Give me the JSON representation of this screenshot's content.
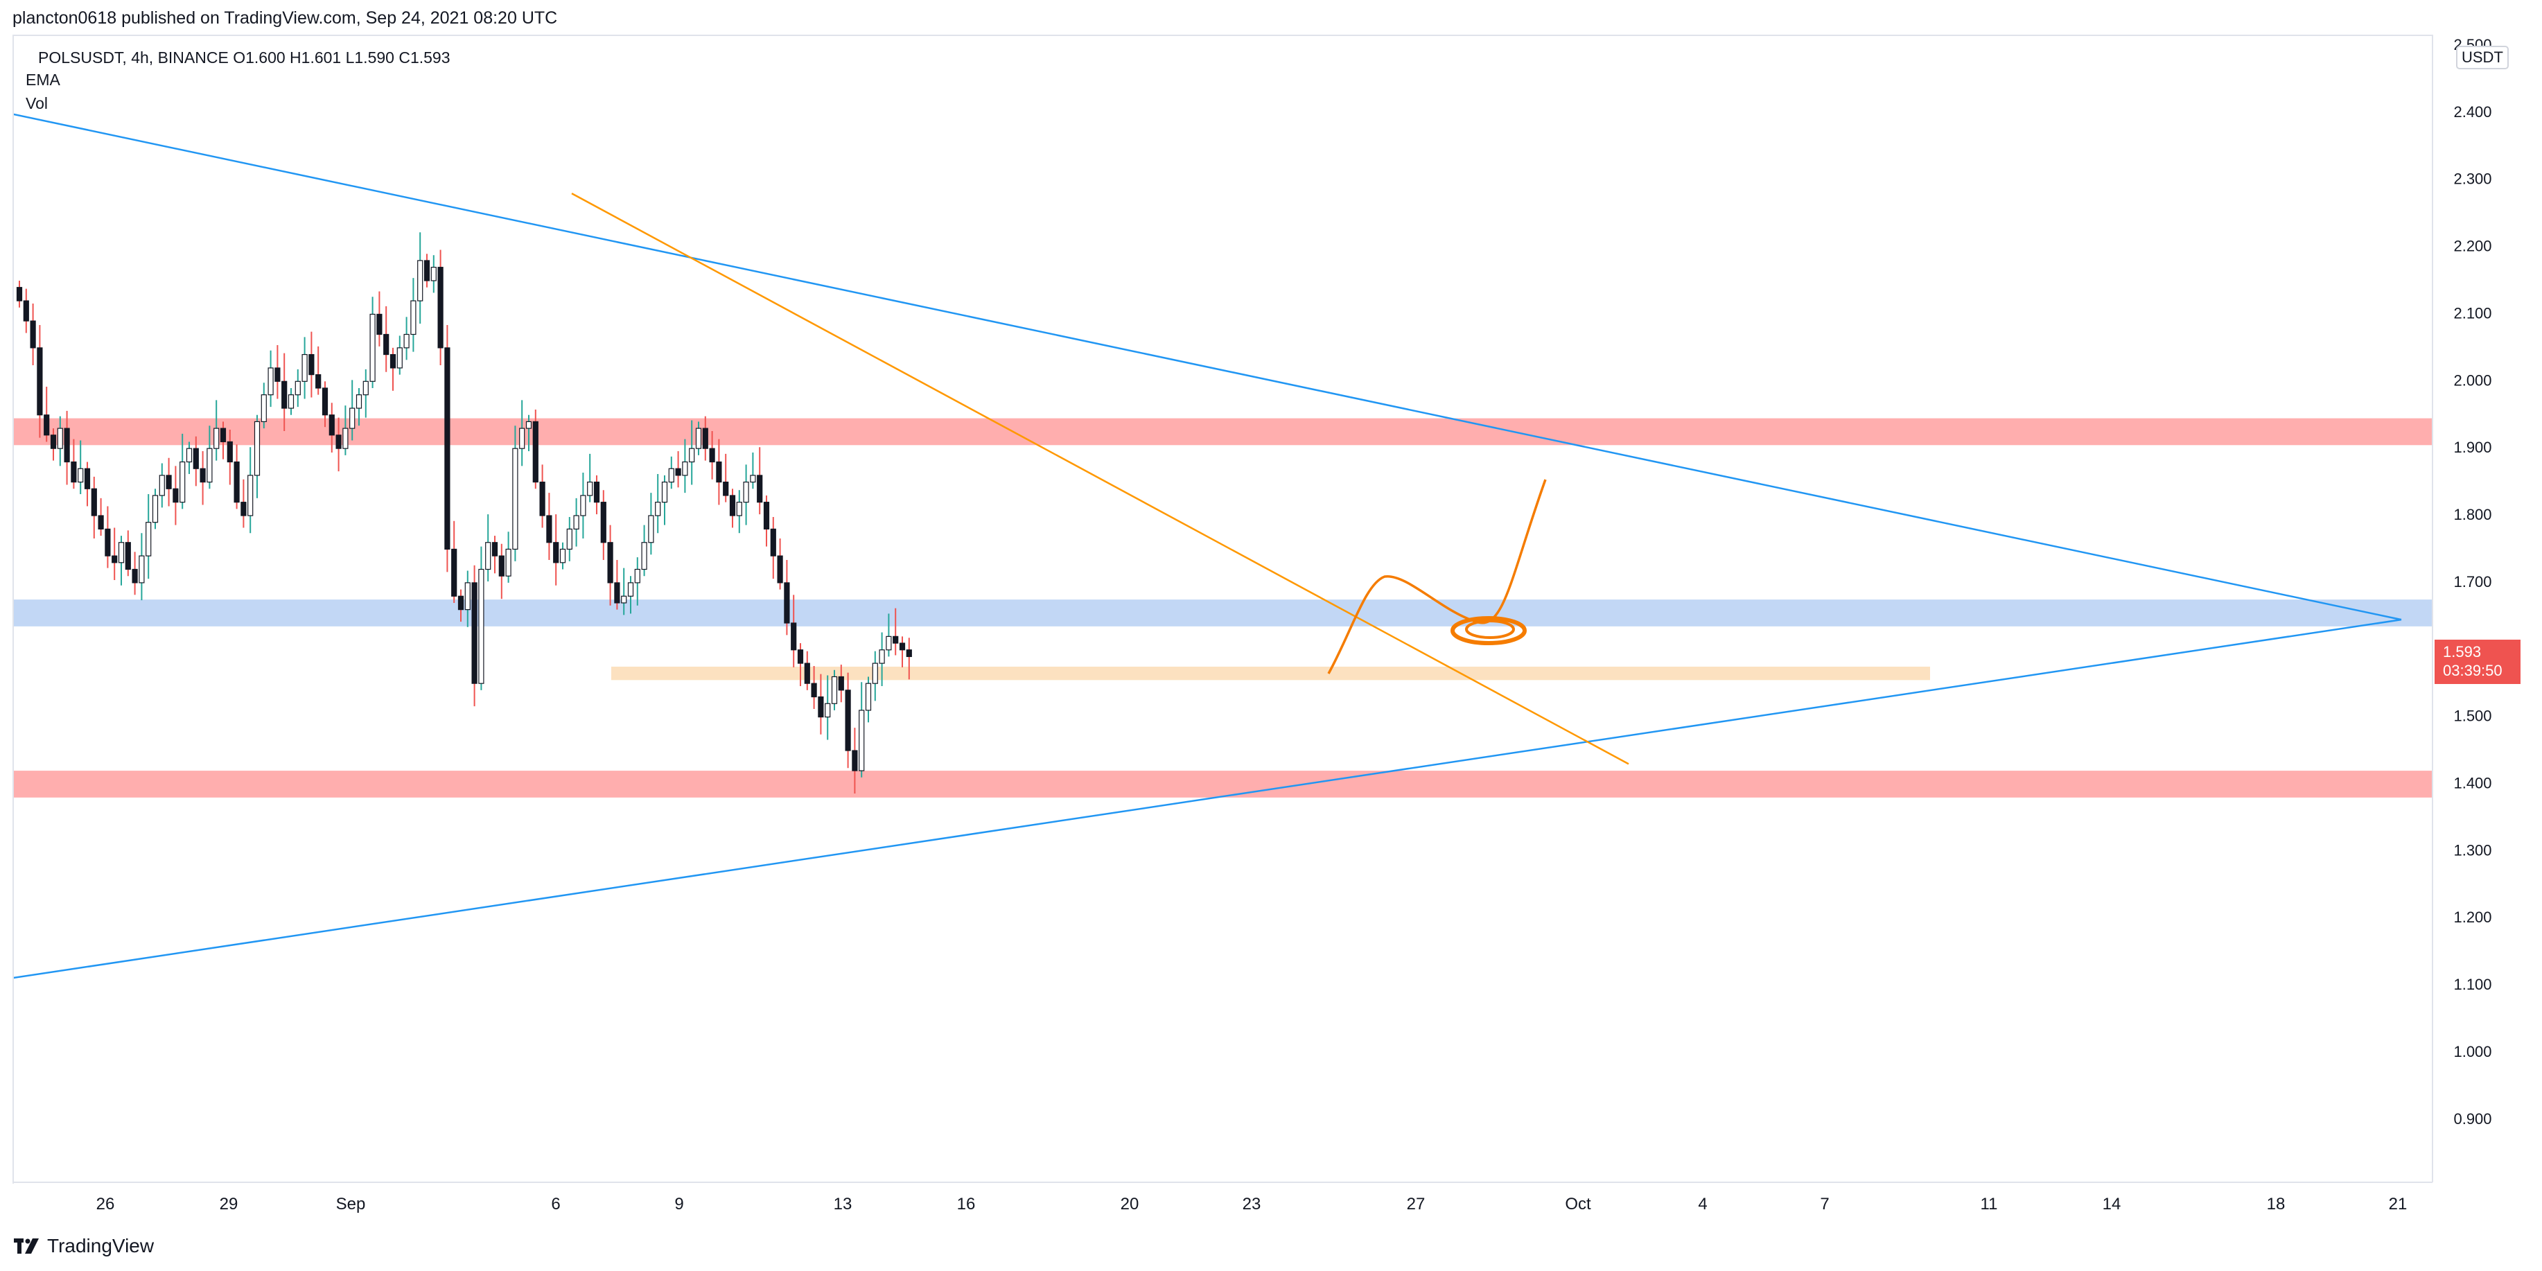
{
  "header": {
    "published_line": "plancton0618 published on TradingView.com, Sep 24, 2021 08:20 UTC"
  },
  "legend": {
    "symbol_line": "POLSUSDT, 4h, BINANCE  O1.600  H1.601  L1.590  C1.593",
    "indicator_1": "EMA",
    "indicator_2": "Vol"
  },
  "price_axis": {
    "currency_badge": "USDT",
    "labels": [
      "2.500",
      "2.400",
      "2.300",
      "2.200",
      "2.100",
      "2.000",
      "1.900",
      "1.800",
      "1.700",
      "1.500",
      "1.400",
      "1.300",
      "1.200",
      "1.100",
      "1.000",
      "0.900"
    ],
    "current_price": "1.593",
    "countdown": "03:39:50"
  },
  "time_axis": {
    "labels": [
      "26",
      "29",
      "Sep",
      "6",
      "9",
      "13",
      "16",
      "20",
      "23",
      "27",
      "Oct",
      "4",
      "7",
      "11",
      "14",
      "18",
      "21"
    ]
  },
  "footer": {
    "brand": "TradingView"
  },
  "colors": {
    "up": "#26a69a",
    "down": "#ef5350",
    "candle_body": "#131722",
    "trendline_blue": "#2196f3",
    "trendline_orange": "#ff9800",
    "zone_red": "#ff9a9a",
    "zone_blue": "#b3cdf3",
    "zone_orange": "#fbd9b0",
    "drawing": "#f57c00"
  },
  "chart_data": {
    "type": "candlestick",
    "symbol": "POLSUSDT",
    "interval": "4h",
    "exchange": "BINANCE",
    "ohlc_last": {
      "open": 1.6,
      "high": 1.601,
      "low": 1.59,
      "close": 1.593
    },
    "ylim": [
      0.82,
      2.5
    ],
    "closes": [
      2.12,
      2.09,
      2.05,
      1.95,
      1.92,
      1.9,
      1.93,
      1.88,
      1.85,
      1.87,
      1.84,
      1.8,
      1.78,
      1.74,
      1.73,
      1.76,
      1.72,
      1.7,
      1.74,
      1.79,
      1.83,
      1.86,
      1.84,
      1.82,
      1.88,
      1.9,
      1.87,
      1.85,
      1.9,
      1.93,
      1.91,
      1.88,
      1.82,
      1.8,
      1.86,
      1.94,
      1.98,
      2.02,
      2.0,
      1.96,
      1.98,
      2.0,
      2.04,
      2.01,
      1.99,
      1.95,
      1.92,
      1.9,
      1.93,
      1.96,
      1.98,
      2.0,
      2.1,
      2.07,
      2.04,
      2.02,
      2.05,
      2.07,
      2.12,
      2.18,
      2.15,
      2.17,
      2.05,
      1.75,
      1.68,
      1.66,
      1.7,
      1.55,
      1.72,
      1.76,
      1.74,
      1.71,
      1.75,
      1.9,
      1.93,
      1.94,
      1.85,
      1.8,
      1.76,
      1.73,
      1.75,
      1.78,
      1.8,
      1.83,
      1.85,
      1.82,
      1.76,
      1.7,
      1.67,
      1.68,
      1.7,
      1.72,
      1.76,
      1.8,
      1.82,
      1.85,
      1.87,
      1.86,
      1.88,
      1.9,
      1.93,
      1.9,
      1.88,
      1.85,
      1.83,
      1.8,
      1.82,
      1.85,
      1.86,
      1.82,
      1.78,
      1.74,
      1.7,
      1.64,
      1.6,
      1.58,
      1.55,
      1.53,
      1.5,
      1.52,
      1.56,
      1.54,
      1.45,
      1.42,
      1.51,
      1.55,
      1.58,
      1.6,
      1.62,
      1.61,
      1.6,
      1.59
    ],
    "zones": [
      {
        "kind": "resistance",
        "from": 1.905,
        "to": 1.945
      },
      {
        "kind": "demand",
        "from": 1.635,
        "to": 1.675
      },
      {
        "kind": "support",
        "from": 1.555,
        "to": 1.575
      },
      {
        "kind": "support",
        "from": 1.38,
        "to": 1.42
      }
    ],
    "trendlines": [
      {
        "name": "descending",
        "from": {
          "x": "Aug 23",
          "y": 2.4
        },
        "to": {
          "x": "Oct 21",
          "y": 1.645
        }
      },
      {
        "name": "ascending",
        "from": {
          "x": "Aug 23",
          "y": 1.11
        },
        "to": {
          "x": "Oct 21",
          "y": 1.645
        }
      },
      {
        "name": "short-term descending",
        "from": {
          "x": "Sep 6",
          "y": 2.28
        },
        "to": {
          "x": "Oct 2",
          "y": 1.43
        }
      }
    ],
    "grid": false
  }
}
